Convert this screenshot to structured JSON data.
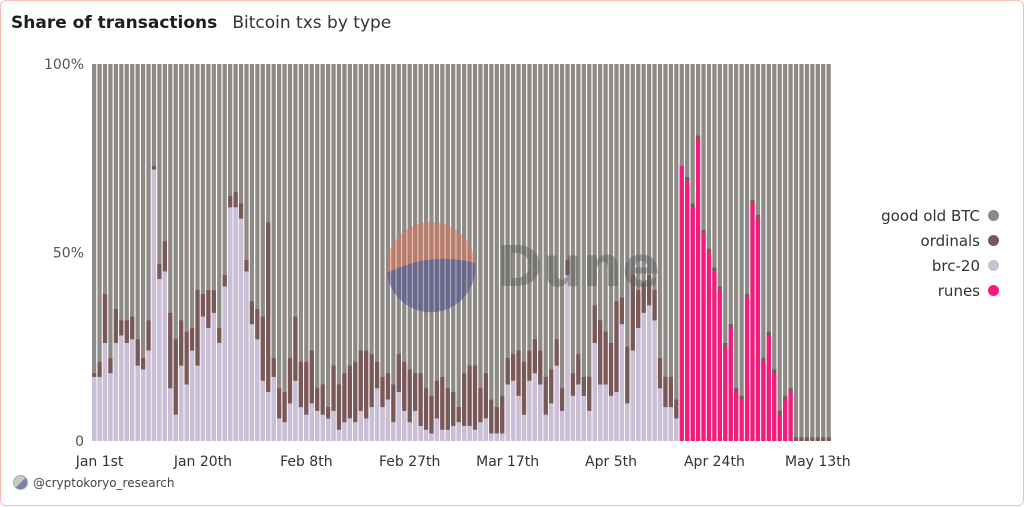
{
  "header": {
    "title": "Share of transactions",
    "subtitle": "Bitcoin txs by type"
  },
  "watermark": "Dune",
  "footer": {
    "handle": "@cryptokoryo_research"
  },
  "colors": {
    "good_old_btc": "#8e8b86",
    "ordinals": "#7a5858",
    "brc20": "#cabfd6",
    "runes": "#f51a7c"
  },
  "chart_data": {
    "type": "bar",
    "stacked": true,
    "title": "Share of transactions",
    "subtitle": "Bitcoin txs by type",
    "y_tick_labels": [
      "100%",
      "50%",
      "0"
    ],
    "y_ticks": [
      100,
      50,
      0
    ],
    "ylim": [
      0,
      100
    ],
    "x_tick_labels": [
      "Jan 1st",
      "Jan 20th",
      "Feb 8th",
      "Feb 27th",
      "Mar 17th",
      "Apr 5th",
      "Apr 24th",
      "May 13th"
    ],
    "x_tick_index": [
      1,
      20,
      39,
      58,
      76,
      95,
      114,
      133
    ],
    "legend_position": "right",
    "grid": false,
    "legend": [
      "good old BTC",
      "ordinals",
      "brc-20",
      "runes"
    ],
    "series": [
      {
        "name": "brc-20",
        "values": [
          17,
          17,
          26,
          18,
          26,
          28,
          26,
          27,
          20,
          19,
          24,
          72,
          43,
          45,
          14,
          7,
          20,
          15,
          24,
          20,
          33,
          30,
          34,
          26,
          41,
          62,
          62,
          59,
          45,
          31,
          27,
          16,
          13,
          17,
          6,
          5,
          10,
          16,
          9,
          7,
          10,
          8,
          7,
          6,
          8,
          3,
          5,
          6,
          5,
          8,
          6,
          9,
          14,
          9,
          11,
          5,
          13,
          8,
          5,
          8,
          4,
          3,
          2,
          6,
          3,
          3,
          4,
          5,
          4,
          4,
          3,
          5,
          6,
          2,
          2,
          2,
          15,
          16,
          12,
          7,
          16,
          18,
          15,
          7,
          10,
          20,
          8,
          44,
          12,
          15,
          12,
          8,
          26,
          15,
          15,
          12,
          13,
          31,
          10,
          24,
          30,
          34,
          36,
          32,
          14,
          9,
          9,
          6,
          0,
          0,
          0,
          0,
          0,
          0,
          0,
          0,
          0,
          0,
          0,
          0,
          0,
          0,
          0,
          0,
          0,
          0,
          0,
          0,
          0,
          0,
          0,
          0,
          0,
          0,
          0,
          0
        ],
        "ordinals_values": [
          1,
          4,
          13,
          4,
          9,
          4,
          6,
          6,
          7,
          3,
          8,
          1,
          4,
          8,
          20,
          20,
          12,
          14,
          6,
          20,
          6,
          10,
          6,
          4,
          3,
          3,
          4,
          4,
          3,
          6,
          8,
          17,
          45,
          5,
          8,
          8,
          12,
          17,
          12,
          14,
          14,
          6,
          8,
          3,
          12,
          12,
          13,
          14,
          16,
          16,
          18,
          14,
          7,
          8,
          7,
          10,
          10,
          13,
          14,
          10,
          14,
          11,
          10,
          10,
          14,
          11,
          9,
          4,
          14,
          16,
          17,
          9,
          12,
          9,
          7,
          10,
          7,
          7,
          12,
          14,
          8,
          9,
          9,
          10,
          9,
          7,
          6,
          4,
          6,
          8,
          5,
          9,
          10,
          17,
          14,
          14,
          24,
          7,
          15,
          20,
          10,
          8,
          8,
          8,
          8,
          8,
          8,
          5,
          0,
          1,
          1,
          1,
          1,
          1,
          1,
          1,
          1,
          1,
          1,
          1,
          1,
          1,
          1,
          1,
          1,
          1,
          1,
          1,
          1,
          1,
          1,
          1,
          1,
          1,
          1,
          1
        ]
      },
      {
        "name": "runes",
        "values": [
          0,
          0,
          0,
          0,
          0,
          0,
          0,
          0,
          0,
          0,
          0,
          0,
          0,
          0,
          0,
          0,
          0,
          0,
          0,
          0,
          0,
          0,
          0,
          0,
          0,
          0,
          0,
          0,
          0,
          0,
          0,
          0,
          0,
          0,
          0,
          0,
          0,
          0,
          0,
          0,
          0,
          0,
          0,
          0,
          0,
          0,
          0,
          0,
          0,
          0,
          0,
          0,
          0,
          0,
          0,
          0,
          0,
          0,
          0,
          0,
          0,
          0,
          0,
          0,
          0,
          0,
          0,
          0,
          0,
          0,
          0,
          0,
          0,
          0,
          0,
          0,
          0,
          0,
          0,
          0,
          0,
          0,
          0,
          0,
          0,
          0,
          0,
          0,
          0,
          0,
          0,
          0,
          0,
          0,
          0,
          0,
          0,
          0,
          0,
          0,
          0,
          0,
          0,
          0,
          0,
          0,
          0,
          0,
          73,
          69,
          62,
          80,
          55,
          50,
          45,
          40,
          25,
          30,
          13,
          11,
          38,
          63,
          59,
          21,
          28,
          18,
          7,
          11,
          13
        ]
      }
    ],
    "note": "good old BTC fills the remainder to 100%"
  }
}
